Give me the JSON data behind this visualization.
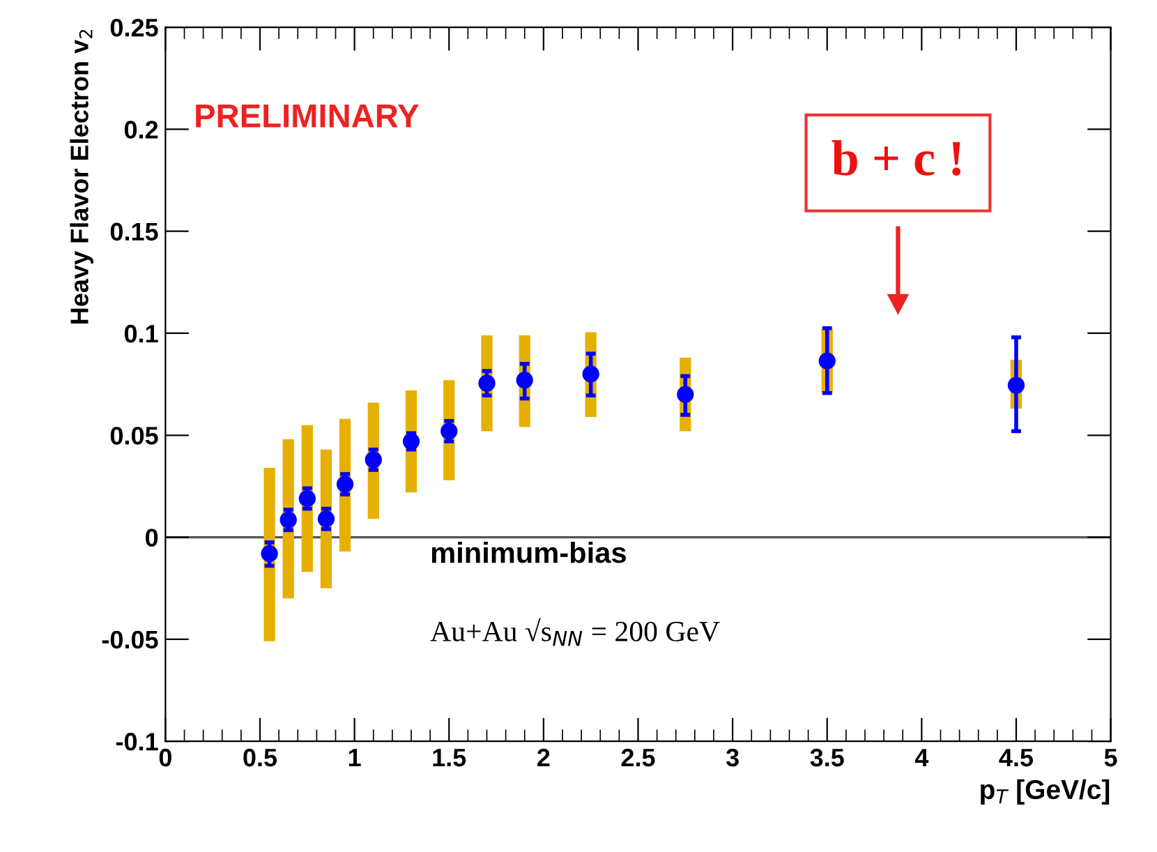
{
  "chart_data": {
    "type": "scatter",
    "xlabel": "p$_{T}$ [GeV/c]",
    "ylabel": "Heavy Flavor Electron v$_{2}$",
    "x": [
      0.55,
      0.65,
      0.75,
      0.85,
      0.95,
      1.1,
      1.3,
      1.5,
      1.7,
      1.9,
      2.25,
      2.75,
      3.5,
      4.5
    ],
    "series": [
      {
        "type": "bar",
        "color": "#e6b000",
        "base": [
          -0.051,
          -0.03,
          -0.017,
          -0.025,
          -0.007,
          0.009,
          0.022,
          0.028,
          0.052,
          0.054,
          0.059,
          0.052,
          0.071,
          0.063
        ],
        "values": [
          0.085,
          0.078,
          0.072,
          0.068,
          0.065,
          0.057,
          0.05,
          0.049,
          0.047,
          0.045,
          0.0415,
          0.036,
          0.031,
          0.024
        ]
      },
      {
        "color": "#0000ff",
        "values": [
          -0.008,
          0.0085,
          0.019,
          0.009,
          0.026,
          0.038,
          0.047,
          0.052,
          0.0755,
          0.077,
          0.08,
          0.07,
          0.0864,
          0.0745
        ],
        "errors": [
          [
            -0.014,
            -0.0025
          ],
          0.005,
          0.005,
          0.005,
          0.005,
          0.005,
          0.004,
          0.005,
          0.006,
          [
            0.068,
            0.085
          ],
          [
            0.0695,
            0.09
          ],
          [
            0.06,
            0.079
          ],
          [
            0.0707,
            0.1025
          ],
          [
            0.052,
            0.098
          ]
        ]
      }
    ],
    "xlim": [
      0,
      5
    ],
    "xticks": [
      0,
      0.5,
      1,
      1.5,
      2,
      2.5,
      3,
      3.5,
      4,
      4.5,
      5
    ],
    "ylim": [
      -0.1,
      0.25
    ],
    "yticks": [
      -0.1,
      -0.05,
      0,
      0.05,
      0.1,
      0.15,
      0.2,
      0.25
    ],
    "ref_lines": [
      {
        "axis": "y",
        "value": 0,
        "color": "#555555"
      }
    ],
    "marker": "circle",
    "grid": false,
    "legend": false,
    "annotations": [
      "PRELIMINARY",
      "minimum-bias",
      "Au+Au √s$_{NN}$ = 200 GeV",
      "b + c !"
    ]
  }
}
